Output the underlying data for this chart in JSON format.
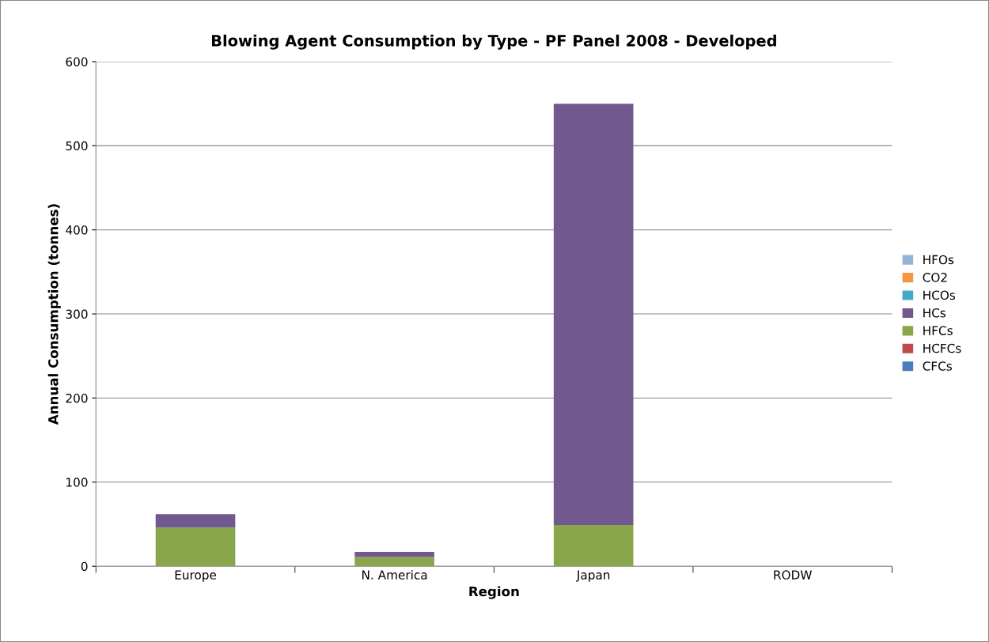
{
  "chart_data": {
    "type": "bar",
    "stacked": true,
    "title": "Blowing Agent Consumption by Type - PF Panel 2008 - Developed",
    "xlabel": "Region",
    "ylabel": "Annual Consumption (tonnes)",
    "categories": [
      "Europe",
      "N. America",
      "Japan",
      "RODW"
    ],
    "series": [
      {
        "name": "CFCs",
        "color": "#4a7ebb",
        "values": [
          0,
          0,
          0,
          0
        ]
      },
      {
        "name": "HCFCs",
        "color": "#be4b48",
        "values": [
          0,
          0,
          0,
          0
        ]
      },
      {
        "name": "HFCs",
        "color": "#8aa64a",
        "values": [
          46,
          11,
          49,
          0
        ]
      },
      {
        "name": "HCs",
        "color": "#71588f",
        "values": [
          16,
          6,
          501,
          0
        ]
      },
      {
        "name": "HCOs",
        "color": "#46aac5",
        "values": [
          0,
          0,
          0,
          0
        ]
      },
      {
        "name": "CO2",
        "color": "#f69546",
        "values": [
          0,
          0,
          0,
          0
        ]
      },
      {
        "name": "HFOs",
        "color": "#95b3d7",
        "values": [
          0,
          0,
          0,
          0
        ]
      }
    ],
    "ylim": [
      0,
      600
    ],
    "yticks": [
      0,
      100,
      200,
      300,
      400,
      500,
      600
    ],
    "grid": "y",
    "legend": "right"
  }
}
